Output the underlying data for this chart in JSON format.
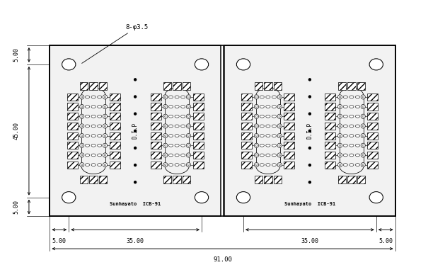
{
  "bg_color": "#ffffff",
  "line_color": "#000000",
  "fig_width": 6.29,
  "fig_height": 3.91,
  "dim_91": "91.00",
  "dim_35a": "35.00",
  "dim_35b": "35.00",
  "dim_5a": "5.00",
  "dim_5b": "5.00",
  "dim_45": "45.00",
  "dim_5top": "5.00",
  "dim_5bot": "5.00",
  "dim_hole": "8-φ3.5",
  "label_dip": "D.I.P",
  "label_brand": "Sunhayato  ICB-91"
}
